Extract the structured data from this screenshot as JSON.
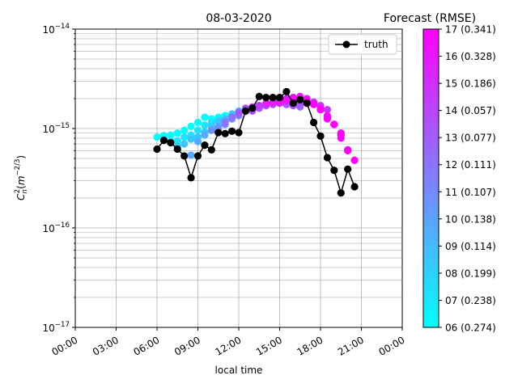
{
  "chart_data": {
    "type": "scatter",
    "title": "08-03-2020",
    "xlabel": "local time",
    "ylabel": "C_n^2(m^{-2/3})",
    "x_ticks": [
      "00:00",
      "03:00",
      "06:00",
      "09:00",
      "12:00",
      "15:00",
      "18:00",
      "21:00",
      "00:00"
    ],
    "x_range_hours": [
      0,
      24
    ],
    "y_scale": "log",
    "y_range": [
      1e-17,
      1e-14
    ],
    "y_ticks": [
      "10^{-17}",
      "10^{-16}",
      "10^{-15}",
      "10^{-14}"
    ],
    "grid": true,
    "legend": {
      "placement": "top-right",
      "entries": [
        "truth"
      ]
    },
    "truth": {
      "name": "truth",
      "color": "#000000",
      "points": [
        [
          "06:00",
          6.2e-16
        ],
        [
          "06:30",
          7.6e-16
        ],
        [
          "07:00",
          7.2e-16
        ],
        [
          "07:30",
          6.2e-16
        ],
        [
          "08:00",
          5.3e-16
        ],
        [
          "08:30",
          3.2e-16
        ],
        [
          "09:00",
          5.3e-16
        ],
        [
          "09:30",
          6.8e-16
        ],
        [
          "10:00",
          6.1e-16
        ],
        [
          "10:30",
          9.1e-16
        ],
        [
          "11:00",
          8.9e-16
        ],
        [
          "11:30",
          9.4e-16
        ],
        [
          "12:00",
          9.1e-16
        ],
        [
          "12:30",
          1.5e-15
        ],
        [
          "13:00",
          1.6e-15
        ],
        [
          "13:30",
          2.1e-15
        ],
        [
          "14:00",
          2.05e-15
        ],
        [
          "14:30",
          2.05e-15
        ],
        [
          "15:00",
          2.05e-15
        ],
        [
          "15:30",
          2.35e-15
        ],
        [
          "16:00",
          1.8e-15
        ],
        [
          "16:30",
          1.95e-15
        ],
        [
          "17:00",
          1.8e-15
        ],
        [
          "17:30",
          1.15e-15
        ],
        [
          "18:00",
          8.4e-16
        ],
        [
          "18:30",
          5.1e-16
        ],
        [
          "19:00",
          3.8e-16
        ],
        [
          "19:30",
          2.25e-16
        ],
        [
          "20:00",
          3.9e-16
        ],
        [
          "20:30",
          2.6e-16
        ]
      ]
    },
    "forecast_levels": [
      {
        "label": "06 (0.274)",
        "color": "#00ffff",
        "start": "06:00",
        "values": [
          8.2e-16,
          8.5e-16,
          8.6e-16,
          9e-16,
          9.6e-16,
          1.05e-15,
          1.15e-15,
          1.3e-15,
          1.25e-15,
          1.3e-15,
          1.35e-15,
          1.3e-15
        ]
      },
      {
        "label": "07 (0.238)",
        "color": "#1ce3ff",
        "start": "06:30",
        "values": [
          7.8e-16,
          7.5e-16,
          7.5e-16,
          8.2e-16,
          8.6e-16,
          9.6e-16,
          1.08e-15,
          1.15e-15,
          1.22e-15,
          1.26e-15,
          1.36e-15,
          1.4e-15
        ]
      },
      {
        "label": "08 (0.199)",
        "color": "#38c7ff",
        "start": "07:30",
        "values": [
          6.6e-16,
          7e-16,
          7.8e-16,
          8.2e-16,
          9.2e-16,
          1.05e-15,
          1.18e-15,
          1.25e-15,
          1.4e-15,
          1.5e-15,
          1.55e-15,
          1.6e-15
        ]
      },
      {
        "label": "09 (0.114)",
        "color": "#55aaff",
        "start": "08:30",
        "values": [
          5.4e-16,
          7.4e-16,
          8.6e-16,
          9.6e-16,
          1.05e-15,
          1.2e-15,
          1.3e-15,
          1.45e-15,
          1.55e-15,
          1.6e-15,
          1.65e-15,
          1.7e-15
        ]
      },
      {
        "label": "10 (0.138)",
        "color": "#718eff",
        "start": "10:00",
        "values": [
          9.6e-16,
          1e-15,
          1.1e-15,
          1.25e-15,
          1.35e-15,
          1.5e-15,
          1.6e-15,
          1.7e-15,
          1.75e-15,
          1.8e-15,
          1.8e-15,
          1.75e-15
        ]
      },
      {
        "label": "11 (0.107)",
        "color": "#8e71ff",
        "start": "11:00",
        "values": [
          1.15e-15,
          1.3e-15,
          1.4e-15,
          1.5e-15,
          1.55e-15,
          1.65e-15,
          1.7e-15,
          1.75e-15,
          1.8e-15,
          1.75e-15,
          1.7e-15,
          1.65e-15
        ]
      },
      {
        "label": "12 (0.111)",
        "color": "#aa55ff",
        "start": "12:00",
        "values": [
          1.45e-15,
          1.6e-15,
          1.5e-15,
          1.6e-15,
          1.7e-15,
          1.75e-15,
          1.8e-15,
          1.75e-15,
          1.7e-15,
          1.75e-15,
          1.8e-15,
          1.85e-15
        ]
      },
      {
        "label": "13 (0.077)",
        "color": "#c738ff",
        "start": "13:00",
        "values": [
          1.65e-15,
          1.7e-15,
          1.75e-15,
          1.8e-15,
          1.8e-15,
          1.9e-15,
          2e-15,
          1.95e-15,
          1.9e-15,
          1.8e-15,
          1.7e-15,
          1.55e-15
        ]
      },
      {
        "label": "14 (0.057)",
        "color": "#e31cff",
        "start": "14:00",
        "values": [
          1.8e-15,
          1.85e-15,
          1.9e-15,
          2e-15,
          2.05e-15,
          2.1e-15,
          2e-15,
          1.8e-15,
          1.55e-15,
          1.3e-15,
          1.1e-15,
          8.8e-16
        ]
      },
      {
        "label": "15 (0.186)",
        "color": "#f00fff",
        "start": "15:00",
        "values": [
          1.85e-15,
          1.9e-15,
          2.05e-15,
          2e-15,
          1.9e-15,
          1.8e-15,
          1.6e-15,
          1.35e-15,
          1.1e-15,
          8e-16,
          6e-16,
          4.8e-16
        ]
      },
      {
        "label": "16 (0.328)",
        "color": "#f807ff",
        "start": "16:00",
        "values": [
          2e-15,
          1.95e-15,
          1.9e-15,
          1.75e-15,
          1.55e-15,
          1.3e-15,
          1.1e-15,
          9e-16,
          6.1e-16
        ]
      },
      {
        "label": "17 (0.341)",
        "color": "#ff00ff",
        "start": "17:00",
        "values": [
          1.9e-15,
          1.75e-15,
          1.55e-15,
          1.25e-15,
          1.1e-15,
          8.5e-16,
          6e-16,
          4.8e-16
        ]
      }
    ],
    "colorbar": {
      "title": "Forecast (RMSE)",
      "colormap": "cool",
      "labels": [
        "06 (0.274)",
        "07 (0.238)",
        "08 (0.199)",
        "09 (0.114)",
        "10 (0.138)",
        "11 (0.107)",
        "12 (0.111)",
        "13 (0.077)",
        "14 (0.057)",
        "15 (0.186)",
        "16 (0.328)",
        "17 (0.341)"
      ]
    }
  }
}
